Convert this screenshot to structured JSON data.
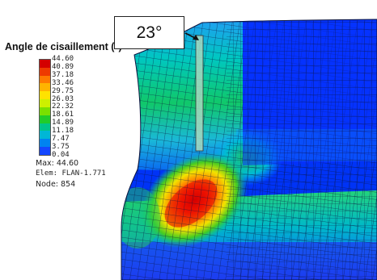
{
  "legend": {
    "title": "Angle de cisaillement (°)",
    "ticks": [
      "44.60",
      "40.89",
      "37.18",
      "33.46",
      "29.75",
      "26.03",
      "22.32",
      "18.61",
      "14.89",
      "11.18",
      "7.47",
      "3.75",
      "0.04"
    ],
    "colors": [
      "#d40000",
      "#ee3a00",
      "#ff7a00",
      "#ffb300",
      "#ffe200",
      "#cdf000",
      "#7ae000",
      "#21cc2a",
      "#00c48a",
      "#00b7d6",
      "#0083f0",
      "#1447ff"
    ]
  },
  "info": {
    "max": "Max: 44.60",
    "elem": "Elem: FLAN-1.771",
    "node": "Node: 854"
  },
  "annotation": {
    "angle": "23°"
  }
}
